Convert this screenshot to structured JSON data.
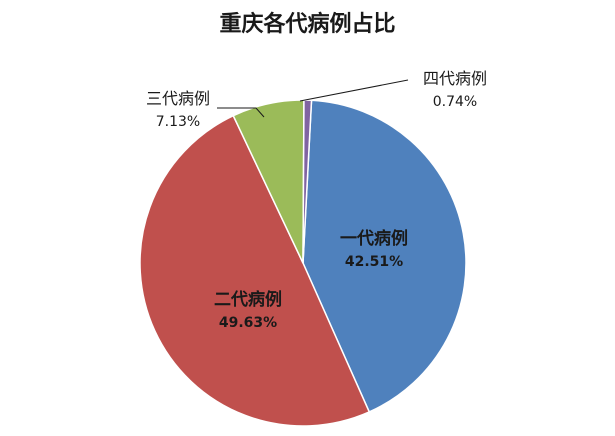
{
  "chart_data": {
    "type": "pie",
    "title": "重庆各代病例占比",
    "slices": [
      {
        "name": "一代病例",
        "value": 42.51,
        "label": "42.51%",
        "color": "#4F81BD"
      },
      {
        "name": "二代病例",
        "value": 49.63,
        "label": "49.63%",
        "color": "#C0504D"
      },
      {
        "name": "三代病例",
        "value": 7.13,
        "label": "7.13%",
        "color": "#9BBB59"
      },
      {
        "name": "四代病例",
        "value": 0.74,
        "label": "0.74%",
        "color": "#8064A2"
      }
    ]
  }
}
